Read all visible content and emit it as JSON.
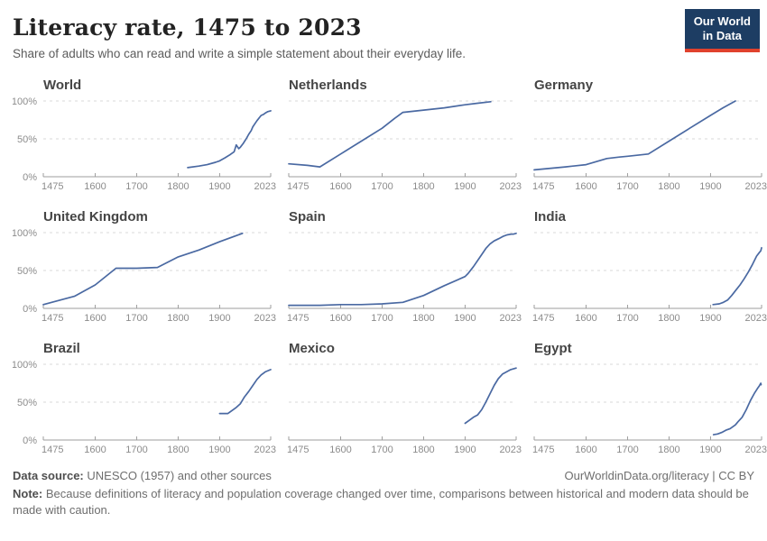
{
  "header": {
    "title": "Literacy rate, 1475 to 2023",
    "subtitle": "Share of adults who can read and write a simple statement about their everyday life.",
    "logo": {
      "line1": "Our World",
      "line2": "in Data"
    }
  },
  "footer": {
    "datasource_label": "Data source:",
    "datasource_text": "UNESCO (1957) and other sources",
    "link_text": "OurWorldinData.org/literacy | CC BY",
    "note_label": "Note:",
    "note_text": "Because definitions of literacy and population coverage changed over time, comparisons between historical and modern data should be made with caution."
  },
  "colors": {
    "line": "#4a69a2",
    "grid": "#d9d9d9",
    "axis": "#9e9e9e",
    "tick_label": "#8c8c8c",
    "chart_title": "#454545",
    "logo_bg": "#1d3d63",
    "logo_accent": "#e0422d"
  },
  "chart_layout": {
    "xlim": [
      1475,
      2023
    ],
    "ylim": [
      0,
      100
    ],
    "x_ticks": [
      1475,
      1600,
      1700,
      1800,
      1900,
      2023
    ],
    "y_axis_ticks": [
      0,
      50,
      100
    ],
    "y_axis_tick_labels": [
      "0%",
      "50%",
      "100%"
    ],
    "y_gridlines": [
      50,
      100
    ],
    "grid": "dashed",
    "y_labels_on_first_column_only": true
  },
  "chart_data": [
    {
      "type": "line",
      "title": "World",
      "ylabel": "",
      "show_y_labels": true,
      "points": [
        [
          1823,
          12
        ],
        [
          1850,
          14
        ],
        [
          1870,
          16
        ],
        [
          1890,
          19
        ],
        [
          1900,
          21
        ],
        [
          1913,
          25
        ],
        [
          1925,
          29
        ],
        [
          1935,
          33
        ],
        [
          1940,
          42
        ],
        [
          1946,
          37
        ],
        [
          1950,
          39
        ],
        [
          1957,
          44
        ],
        [
          1965,
          51
        ],
        [
          1970,
          56
        ],
        [
          1976,
          61
        ],
        [
          1980,
          66
        ],
        [
          1985,
          70
        ],
        [
          1990,
          74
        ],
        [
          2000,
          81
        ],
        [
          2005,
          82
        ],
        [
          2010,
          84
        ],
        [
          2016,
          86
        ],
        [
          2023,
          87
        ]
      ]
    },
    {
      "type": "line",
      "title": "Netherlands",
      "ylabel": "",
      "show_y_labels": false,
      "points": [
        [
          1475,
          17
        ],
        [
          1520,
          15
        ],
        [
          1550,
          13
        ],
        [
          1600,
          30
        ],
        [
          1650,
          47
        ],
        [
          1700,
          64
        ],
        [
          1730,
          77
        ],
        [
          1750,
          85
        ],
        [
          1800,
          88
        ],
        [
          1850,
          91
        ],
        [
          1900,
          95
        ],
        [
          1930,
          97
        ],
        [
          1962,
          99
        ]
      ]
    },
    {
      "type": "line",
      "title": "Germany",
      "ylabel": "",
      "show_y_labels": false,
      "points": [
        [
          1475,
          9
        ],
        [
          1550,
          13
        ],
        [
          1600,
          16
        ],
        [
          1650,
          24
        ],
        [
          1680,
          26
        ],
        [
          1700,
          27
        ],
        [
          1750,
          30
        ],
        [
          1800,
          47
        ],
        [
          1850,
          64
        ],
        [
          1900,
          81
        ],
        [
          1930,
          91
        ],
        [
          1960,
          100
        ]
      ]
    },
    {
      "type": "line",
      "title": "United Kingdom",
      "ylabel": "",
      "show_y_labels": true,
      "points": [
        [
          1475,
          5
        ],
        [
          1550,
          16
        ],
        [
          1600,
          31
        ],
        [
          1650,
          53
        ],
        [
          1700,
          53
        ],
        [
          1750,
          54
        ],
        [
          1800,
          68
        ],
        [
          1850,
          77
        ],
        [
          1900,
          88
        ],
        [
          1955,
          99
        ]
      ]
    },
    {
      "type": "line",
      "title": "Spain",
      "ylabel": "",
      "show_y_labels": false,
      "points": [
        [
          1475,
          4
        ],
        [
          1550,
          4
        ],
        [
          1600,
          5
        ],
        [
          1650,
          5
        ],
        [
          1700,
          6
        ],
        [
          1750,
          8
        ],
        [
          1800,
          17
        ],
        [
          1850,
          30
        ],
        [
          1900,
          42
        ],
        [
          1907,
          46
        ],
        [
          1920,
          55
        ],
        [
          1930,
          63
        ],
        [
          1940,
          71
        ],
        [
          1950,
          79
        ],
        [
          1960,
          85
        ],
        [
          1970,
          89
        ],
        [
          1981,
          92
        ],
        [
          1991,
          95
        ],
        [
          2001,
          97
        ],
        [
          2011,
          98
        ],
        [
          2016,
          98
        ],
        [
          2023,
          99
        ]
      ]
    },
    {
      "type": "line",
      "title": "India",
      "ylabel": "",
      "show_y_labels": false,
      "points": [
        [
          1906,
          5
        ],
        [
          1921,
          6
        ],
        [
          1931,
          8
        ],
        [
          1941,
          11
        ],
        [
          1951,
          17
        ],
        [
          1961,
          24
        ],
        [
          1971,
          31
        ],
        [
          1981,
          39
        ],
        [
          1991,
          48
        ],
        [
          2001,
          58
        ],
        [
          2011,
          69
        ],
        [
          2018,
          74
        ],
        [
          2021,
          76
        ],
        [
          2023,
          80
        ]
      ]
    },
    {
      "type": "line",
      "title": "Brazil",
      "ylabel": "",
      "show_y_labels": true,
      "points": [
        [
          1900,
          35
        ],
        [
          1910,
          35
        ],
        [
          1920,
          35
        ],
        [
          1940,
          43
        ],
        [
          1950,
          48
        ],
        [
          1960,
          57
        ],
        [
          1970,
          64
        ],
        [
          1980,
          72
        ],
        [
          1990,
          80
        ],
        [
          2000,
          86
        ],
        [
          2010,
          90
        ],
        [
          2023,
          93
        ]
      ]
    },
    {
      "type": "line",
      "title": "Mexico",
      "ylabel": "",
      "show_y_labels": false,
      "points": [
        [
          1900,
          22
        ],
        [
          1910,
          26
        ],
        [
          1920,
          30
        ],
        [
          1930,
          33
        ],
        [
          1940,
          40
        ],
        [
          1950,
          50
        ],
        [
          1960,
          61
        ],
        [
          1970,
          72
        ],
        [
          1980,
          81
        ],
        [
          1990,
          87
        ],
        [
          2000,
          90
        ],
        [
          2010,
          93
        ],
        [
          2023,
          95
        ]
      ]
    },
    {
      "type": "line",
      "title": "Egypt",
      "ylabel": "",
      "show_y_labels": false,
      "points": [
        [
          1907,
          7
        ],
        [
          1917,
          8
        ],
        [
          1927,
          10
        ],
        [
          1937,
          13
        ],
        [
          1947,
          15
        ],
        [
          1960,
          20
        ],
        [
          1966,
          24
        ],
        [
          1976,
          30
        ],
        [
          1986,
          40
        ],
        [
          1996,
          52
        ],
        [
          2006,
          62
        ],
        [
          2013,
          68
        ],
        [
          2017,
          71
        ],
        [
          2021,
          75
        ],
        [
          2022,
          73
        ]
      ]
    }
  ]
}
